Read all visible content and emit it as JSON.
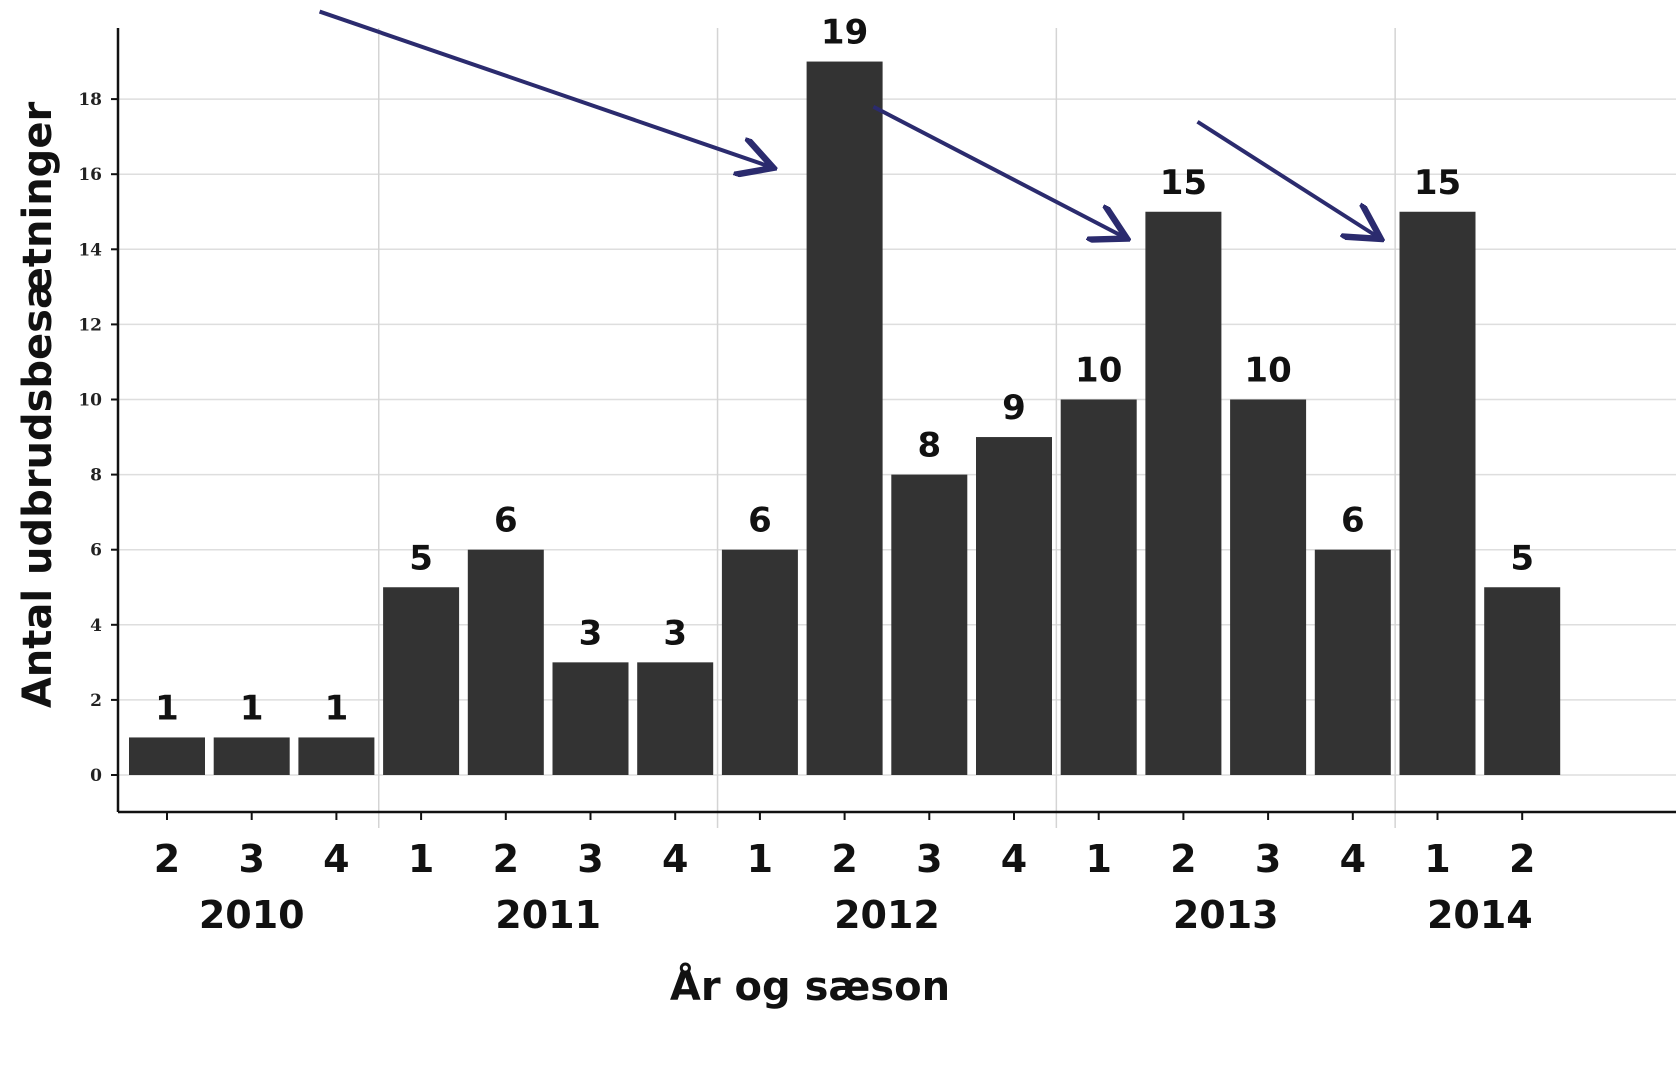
{
  "chart_data": {
    "type": "bar",
    "title": "",
    "xlabel": "År og sæson",
    "ylabel": "Antal udbrudsbesætninger",
    "ylim": [
      0,
      19.5
    ],
    "yticks": [
      0,
      2,
      4,
      6,
      8,
      10,
      12,
      14,
      16,
      18
    ],
    "grid": true,
    "bar_color": "#333333",
    "arrow_color": "#2b2b6e",
    "categories": [
      {
        "year": "2010",
        "season": "2",
        "value": 1
      },
      {
        "year": "2010",
        "season": "3",
        "value": 1
      },
      {
        "year": "2010",
        "season": "4",
        "value": 1
      },
      {
        "year": "2011",
        "season": "1",
        "value": 5
      },
      {
        "year": "2011",
        "season": "2",
        "value": 6
      },
      {
        "year": "2011",
        "season": "3",
        "value": 3
      },
      {
        "year": "2011",
        "season": "4",
        "value": 3
      },
      {
        "year": "2012",
        "season": "1",
        "value": 6
      },
      {
        "year": "2012",
        "season": "2",
        "value": 19
      },
      {
        "year": "2012",
        "season": "3",
        "value": 8
      },
      {
        "year": "2012",
        "season": "4",
        "value": 9
      },
      {
        "year": "2013",
        "season": "1",
        "value": 10
      },
      {
        "year": "2013",
        "season": "2",
        "value": 15
      },
      {
        "year": "2013",
        "season": "3",
        "value": 10
      },
      {
        "year": "2013",
        "season": "4",
        "value": 6
      },
      {
        "year": "2014",
        "season": "1",
        "value": 15
      },
      {
        "year": "2014",
        "season": "2",
        "value": 5
      }
    ],
    "years": [
      "2010",
      "2011",
      "2012",
      "2013",
      "2014"
    ],
    "annotations": [
      {
        "type": "arrow",
        "points_to": {
          "year": "2012",
          "season": "2"
        }
      },
      {
        "type": "arrow",
        "points_to": {
          "year": "2013",
          "season": "2"
        }
      },
      {
        "type": "arrow",
        "points_to": {
          "year": "2014",
          "season": "1"
        }
      }
    ]
  }
}
